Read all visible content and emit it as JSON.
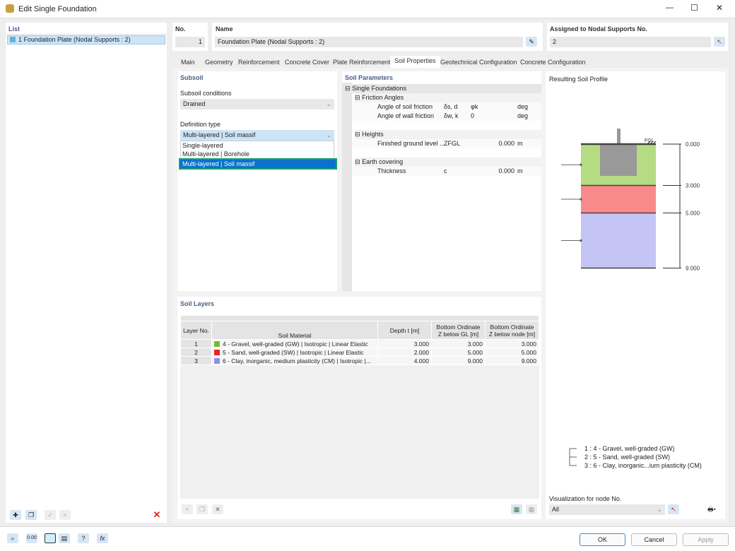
{
  "window": {
    "title": "Edit Single Foundation",
    "minimize": "—",
    "maximize": "☐",
    "close": "✕"
  },
  "list": {
    "header": "List",
    "items": [
      {
        "label": "1  Foundation Plate (Nodal Supports : 2)"
      }
    ]
  },
  "no": {
    "label": "No.",
    "value": "1"
  },
  "name": {
    "label": "Name",
    "value": "Foundation Plate (Nodal Supports : 2)"
  },
  "assigned": {
    "label": "Assigned to Nodal Supports No.",
    "value": "2"
  },
  "tabs": [
    {
      "label": "Main"
    },
    {
      "label": "Geometry"
    },
    {
      "label": "Reinforcement"
    },
    {
      "label": "Concrete Cover"
    },
    {
      "label": "Plate Reinforcement"
    },
    {
      "label": "Soil Properties",
      "active": true
    },
    {
      "label": "Geotechnical Configuration"
    },
    {
      "label": "Concrete Configuration"
    }
  ],
  "subsoil": {
    "header": "Subsoil",
    "conditions_label": "Subsoil conditions",
    "conditions_value": "Drained",
    "definition_label": "Definition type",
    "definition_value": "Multi-layered | Soil massif",
    "options": [
      "Single-layered",
      "Multi-layered | Borehole",
      "Multi-layered | Soil massif"
    ],
    "highlight_color": "#1a9e7a"
  },
  "params": {
    "header": "Soil Parameters",
    "group": "Single Foundations",
    "sections": [
      {
        "title": "Friction Angles",
        "rows": [
          {
            "name": "Angle of soil friction",
            "symbol": "δs, d",
            "value": "φk",
            "unit": "deg"
          },
          {
            "name": "Angle of wall friction",
            "symbol": "δw, k",
            "value": "0",
            "unit": "deg"
          }
        ]
      },
      {
        "title": "Heights",
        "rows": [
          {
            "name": "Finished ground level ...",
            "symbol": "ZFGL",
            "value": "0.000",
            "unit": "m"
          }
        ]
      },
      {
        "title": "Earth covering",
        "rows": [
          {
            "name": "Thickness",
            "symbol": "c",
            "value": "0.000",
            "unit": "m"
          }
        ]
      }
    ]
  },
  "layers": {
    "header": "Soil Layers",
    "columns": [
      "Layer No.",
      "Soil Material",
      "Depth t [m]",
      "Bottom Ordinate Z below GL [m]",
      "Bottom Ordinate Z below node [m]"
    ],
    "rows": [
      {
        "no": "1",
        "material": "4 - Gravel, well-graded (GW) | Isotropic | Linear Elastic",
        "color": "#7cb82f",
        "depth": "3.000",
        "gl": "3.000",
        "node": "3.000"
      },
      {
        "no": "2",
        "material": "5 - Sand, well-graded (SW) | Isotropic | Linear Elastic",
        "color": "#e8242a",
        "depth": "2.000",
        "gl": "5.000",
        "node": "5.000"
      },
      {
        "no": "3",
        "material": "6 - Clay, inorganic, medium plasticity (CM) | Isotropic |...",
        "color": "#8f8fe8",
        "depth": "4.000",
        "gl": "9.000",
        "node": "9.000"
      }
    ]
  },
  "profile": {
    "header": "Resulting Soil Profile",
    "fgl": "FGL",
    "levels": [
      "0.000",
      "3.000",
      "5.000",
      "9.000"
    ],
    "depths": [
      0,
      3,
      5,
      9
    ],
    "colors": [
      "#b5dc82",
      "#f88a8a",
      "#c4c4f5"
    ],
    "legend": [
      "1 :  4 - Gravel, well-graded (GW)",
      "2 :  5 - Sand, well-graded (SW)",
      "3 :  6 - Clay, inorganic...ium plasticity (CM)"
    ],
    "node_label": "Visualization for node No.",
    "node_value": "All"
  },
  "buttons": {
    "ok": "OK",
    "cancel": "Cancel",
    "apply": "Apply"
  }
}
